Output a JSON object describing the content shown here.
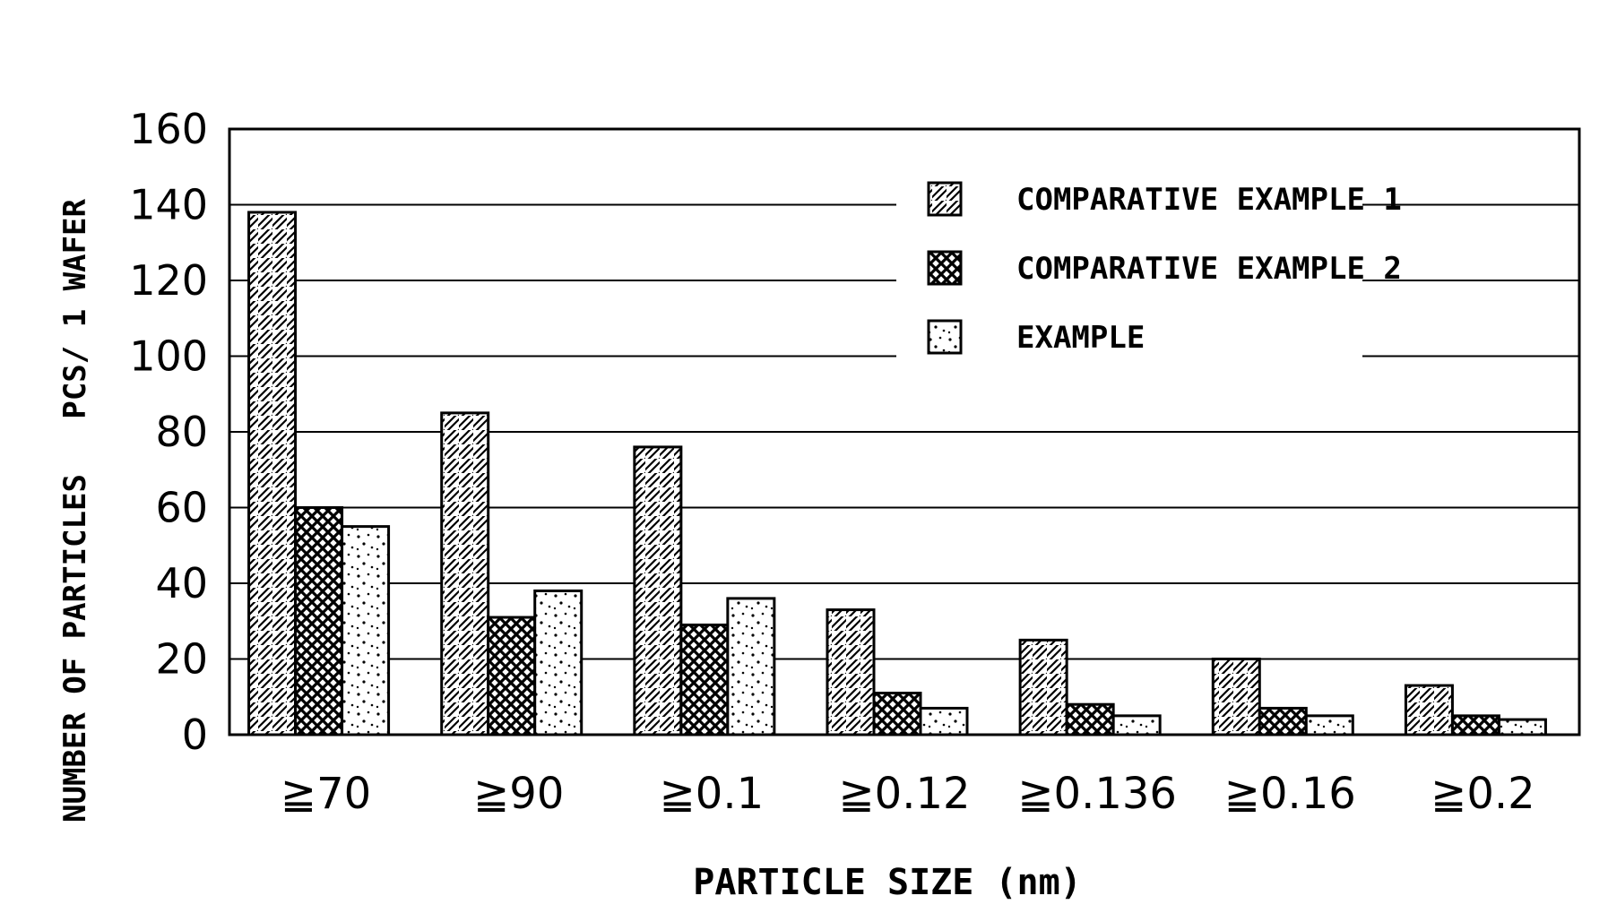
{
  "chart_data": {
    "type": "bar",
    "ylabel": "NUMBER OF PARTICLES   PCS/ 1 WAFER",
    "xlabel": "PARTICLE SIZE (nm)",
    "categories": [
      "≧70",
      "≧90",
      "≧0.1",
      "≧0.12",
      "≧0.136",
      "≧0.16",
      "≧0.2"
    ],
    "ylim": [
      0,
      160
    ],
    "yticks": [
      "0",
      "20",
      "40",
      "60",
      "80",
      "100",
      "120",
      "140",
      "160"
    ],
    "grid": true,
    "legend_position": "top-right",
    "series": [
      {
        "name": "COMPARATIVE EXAMPLE 1",
        "pattern": "diagonal-hatch",
        "values": [
          138,
          85,
          76,
          33,
          25,
          20,
          13
        ]
      },
      {
        "name": "COMPARATIVE EXAMPLE 2",
        "pattern": "crosshatch",
        "values": [
          60,
          31,
          29,
          11,
          8,
          7,
          5
        ]
      },
      {
        "name": "EXAMPLE",
        "pattern": "dots",
        "values": [
          55,
          38,
          36,
          7,
          5,
          5,
          4
        ]
      }
    ]
  }
}
